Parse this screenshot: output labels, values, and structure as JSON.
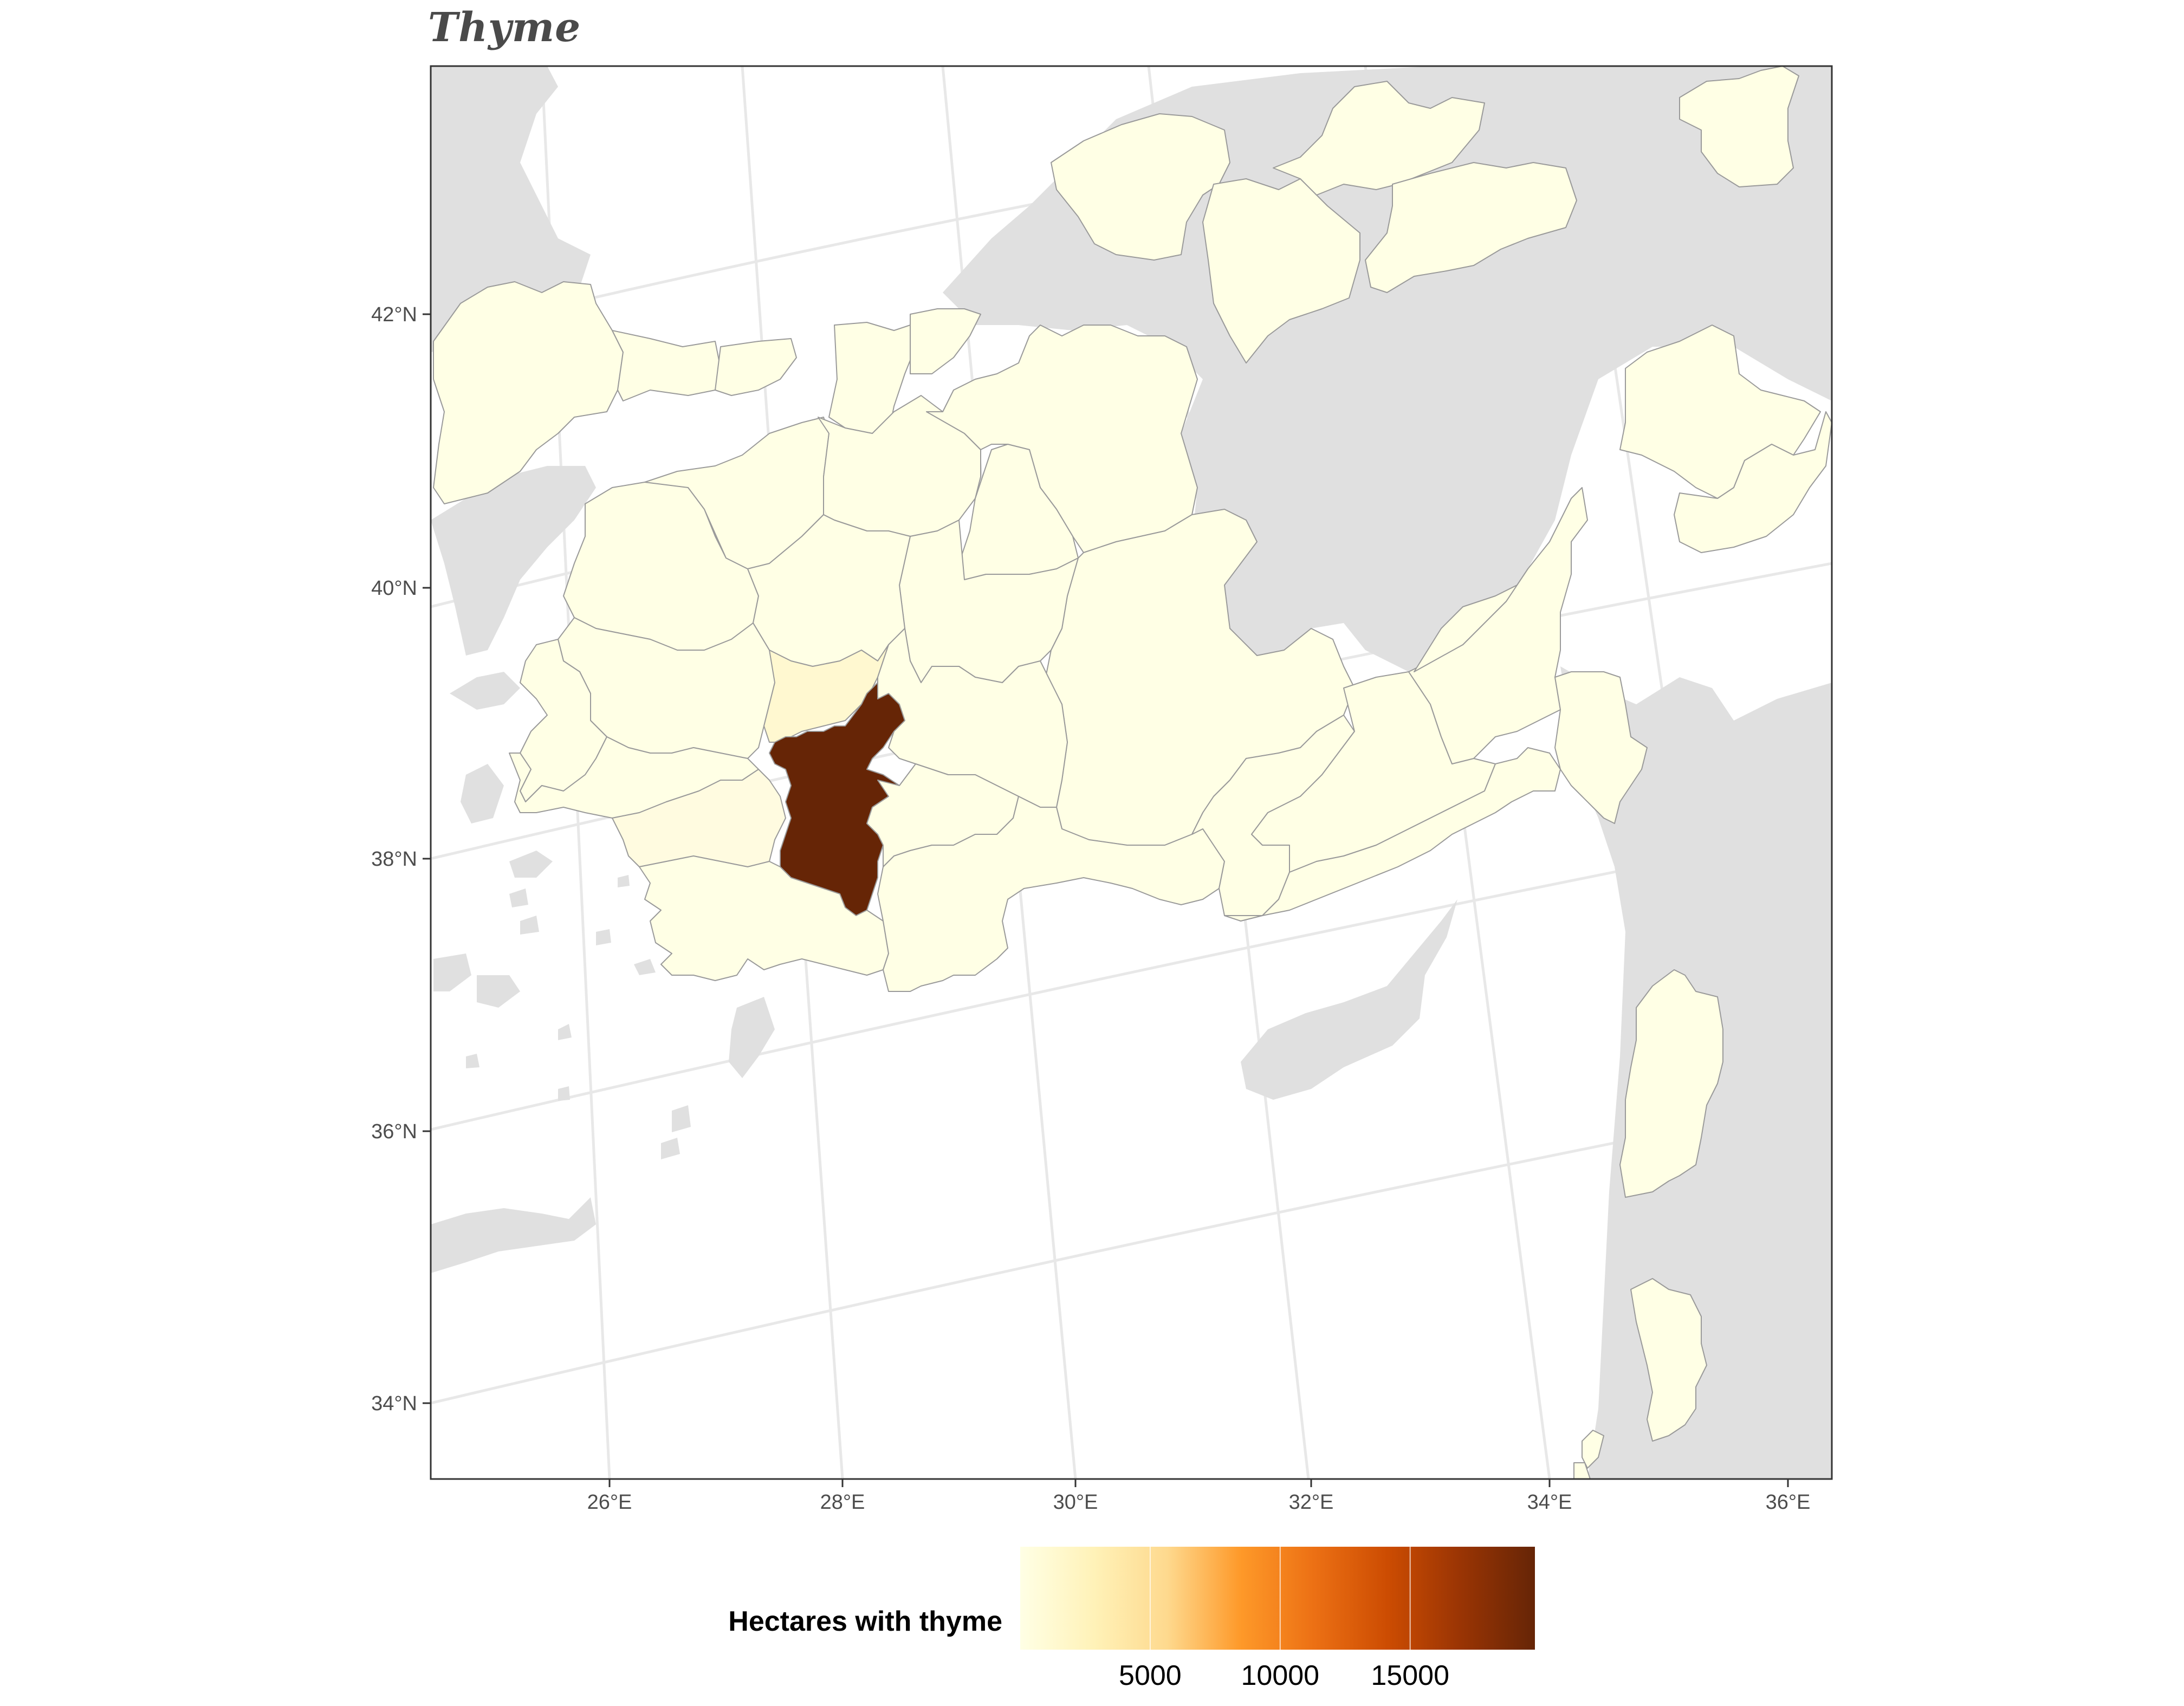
{
  "title": "Thyme",
  "map": {
    "region": "Turkey (Aegean / Marmara / Central Anatolia)",
    "axis_lat_labels": [
      "42°N",
      "40°N",
      "38°N",
      "36°N",
      "34°N"
    ],
    "axis_lon_labels": [
      "26°E",
      "28°E",
      "30°E",
      "32°E",
      "34°E",
      "36°E"
    ],
    "colors": {
      "sea": "#ffffff",
      "other_land": "#e0e0e0",
      "low": "#ffffe5",
      "high": "#662506",
      "border": "#9a9a9a"
    },
    "highlighted_provinces": [
      {
        "label": "highest",
        "value": 19000,
        "color": "#662506"
      },
      {
        "label": "low",
        "value": 600,
        "color": "#fff7cf"
      },
      {
        "label": "low",
        "value": 300,
        "color": "#fffbde"
      }
    ]
  },
  "legend": {
    "title": "Hectares with thyme",
    "ticks": [
      "5000",
      "10000",
      "15000"
    ],
    "gradient": [
      "#ffffe5",
      "#fff2b8",
      "#fed98e",
      "#fe9929",
      "#ec7014",
      "#cc4c02",
      "#993404",
      "#662506"
    ],
    "range": [
      0,
      19800
    ]
  }
}
